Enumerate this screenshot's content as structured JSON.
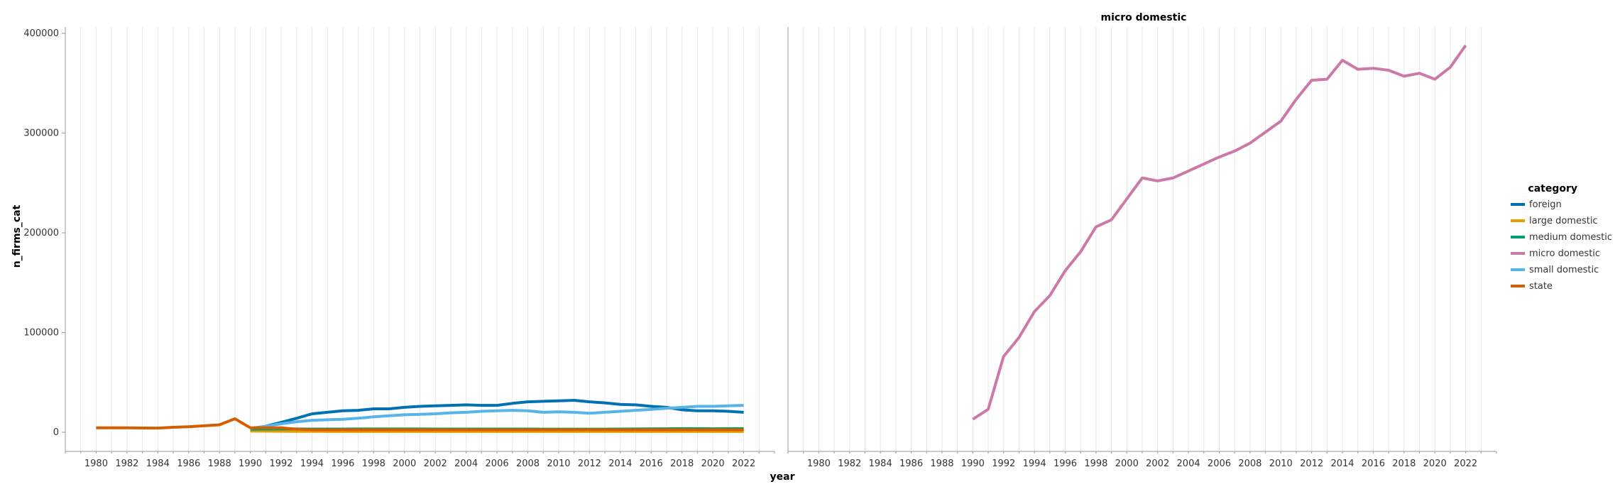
{
  "chart_data": {
    "type": "line",
    "ylabel": "n_firms_cat",
    "xlabel": "year",
    "ylim": [
      0,
      400000
    ],
    "yticks": [
      0,
      100000,
      200000,
      300000,
      400000
    ],
    "xlim": [
      1978,
      2024
    ],
    "xticks": [
      1980,
      1982,
      1984,
      1986,
      1988,
      1990,
      1992,
      1994,
      1996,
      1998,
      2000,
      2002,
      2004,
      2006,
      2008,
      2010,
      2012,
      2014,
      2016,
      2018,
      2020,
      2022
    ],
    "grid": true,
    "legend": {
      "title": "category",
      "position": "right"
    },
    "panels": [
      {
        "title": "",
        "series": [
          {
            "name": "foreign",
            "color": "#0072b2",
            "x": [
              1990,
              1991,
              1992,
              1993,
              1994,
              1995,
              1996,
              1997,
              1998,
              1999,
              2000,
              2001,
              2002,
              2003,
              2004,
              2005,
              2006,
              2007,
              2008,
              2009,
              2010,
              2011,
              2012,
              2013,
              2014,
              2015,
              2016,
              2017,
              2018,
              2019,
              2020,
              2021,
              2022
            ],
            "y": [
              3000,
              6000,
              10000,
              14000,
              18500,
              20000,
              21500,
              22000,
              23500,
              23500,
              25000,
              26000,
              26500,
              27000,
              27500,
              27000,
              27000,
              29000,
              30500,
              31000,
              31500,
              32000,
              30500,
              29500,
              28000,
              27500,
              26000,
              25000,
              22500,
              21500,
              21500,
              21000,
              20000
            ]
          },
          {
            "name": "large domestic",
            "color": "#e69f00",
            "x": [
              1990,
              1991,
              1992,
              1993,
              1994,
              1995,
              1996,
              1997,
              1998,
              1999,
              2000,
              2001,
              2002,
              2003,
              2004,
              2005,
              2006,
              2007,
              2008,
              2009,
              2010,
              2011,
              2012,
              2013,
              2014,
              2015,
              2016,
              2017,
              2018,
              2019,
              2020,
              2021,
              2022
            ],
            "y": [
              1200,
              1100,
              1000,
              900,
              850,
              800,
              800,
              800,
              800,
              800,
              800,
              800,
              800,
              800,
              800,
              800,
              800,
              800,
              800,
              800,
              800,
              800,
              800,
              800,
              800,
              800,
              800,
              800,
              800,
              800,
              800,
              800,
              800
            ]
          },
          {
            "name": "medium domestic",
            "color": "#009e73",
            "x": [
              1990,
              1991,
              1992,
              1993,
              1994,
              1995,
              1996,
              1997,
              1998,
              1999,
              2000,
              2001,
              2002,
              2003,
              2004,
              2005,
              2006,
              2007,
              2008,
              2009,
              2010,
              2011,
              2012,
              2013,
              2014,
              2015,
              2016,
              2017,
              2018,
              2019,
              2020,
              2021,
              2022
            ],
            "y": [
              3000,
              3200,
              3300,
              3300,
              3200,
              3200,
              3200,
              3300,
              3300,
              3300,
              3300,
              3300,
              3200,
              3200,
              3200,
              3200,
              3200,
              3200,
              3200,
              3100,
              3100,
              3100,
              3100,
              3100,
              3200,
              3300,
              3400,
              3500,
              3600,
              3600,
              3500,
              3600,
              3600
            ]
          },
          {
            "name": "micro domestic",
            "color": "#cc79a7",
            "x": [],
            "y": []
          },
          {
            "name": "small domestic",
            "color": "#56b4e9",
            "x": [
              1990,
              1991,
              1992,
              1993,
              1994,
              1995,
              1996,
              1997,
              1998,
              1999,
              2000,
              2001,
              2002,
              2003,
              2004,
              2005,
              2006,
              2007,
              2008,
              2009,
              2010,
              2011,
              2012,
              2013,
              2014,
              2015,
              2016,
              2017,
              2018,
              2019,
              2020,
              2021,
              2022
            ],
            "y": [
              4000,
              6000,
              8500,
              10500,
              12000,
              12500,
              13000,
              14000,
              15500,
              16500,
              17500,
              18000,
              18500,
              19500,
              20000,
              21000,
              21500,
              22000,
              21500,
              20000,
              20500,
              20000,
              19000,
              20000,
              21000,
              22000,
              23000,
              24000,
              25000,
              26000,
              26000,
              26500,
              27000
            ]
          },
          {
            "name": "state",
            "color": "#d55e00",
            "x": [
              1980,
              1981,
              1982,
              1983,
              1984,
              1985,
              1986,
              1987,
              1988,
              1989,
              1990,
              1991,
              1992,
              1993,
              1994,
              1995,
              1996,
              1997,
              1998,
              1999,
              2000,
              2001,
              2002,
              2003,
              2004,
              2005,
              2006,
              2007,
              2008,
              2009,
              2010,
              2011,
              2012,
              2013,
              2014,
              2015,
              2016,
              2017,
              2018,
              2019,
              2020,
              2021,
              2022
            ],
            "y": [
              4500,
              4500,
              4400,
              4300,
              4200,
              5000,
              5500,
              6500,
              7500,
              13500,
              4500,
              4500,
              4500,
              3000,
              2500,
              2500,
              2500,
              2500,
              2500,
              2500,
              2500,
              2500,
              2500,
              2500,
              2500,
              2500,
              2500,
              2500,
              2500,
              2500,
              2500,
              2500,
              2500,
              2500,
              2500,
              2500,
              2500,
              2500,
              2500,
              2500,
              2500,
              2500,
              2500
            ]
          }
        ]
      },
      {
        "title": "micro domestic",
        "series": [
          {
            "name": "micro domestic",
            "color": "#cc79a7",
            "x": [
              1990,
              1991,
              1992,
              1993,
              1994,
              1995,
              1996,
              1997,
              1998,
              1999,
              2000,
              2001,
              2002,
              2003,
              2004,
              2005,
              2006,
              2007,
              2008,
              2009,
              2010,
              2011,
              2012,
              2013,
              2014,
              2015,
              2016,
              2017,
              2018,
              2019,
              2020,
              2021,
              2022
            ],
            "y": [
              13000,
              23000,
              76000,
              95000,
              121000,
              137000,
              162000,
              181000,
              206000,
              213000,
              234000,
              255000,
              252000,
              255000,
              262000,
              269000,
              276000,
              282000,
              290000,
              301000,
              312000,
              334000,
              353000,
              354000,
              373000,
              364000,
              365000,
              363000,
              357000,
              360000,
              354000,
              366000,
              388000
            ]
          }
        ]
      }
    ]
  }
}
